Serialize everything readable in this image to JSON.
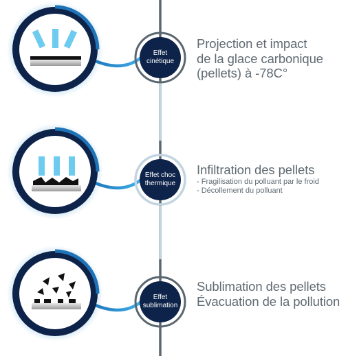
{
  "steps": [
    {
      "badge_lines": [
        "Effet",
        "cinétique"
      ],
      "title_lines": [
        "Projection et impact",
        "de la glace carbonique",
        "(pellets) à -78C°"
      ],
      "details": []
    },
    {
      "badge_lines": [
        "Effet choc",
        "thermique"
      ],
      "title_lines": [
        "Infiltration des pellets"
      ],
      "details": [
        "- Fragilisation du polluant par le froid",
        "- Décollement du polluant"
      ]
    },
    {
      "badge_lines": [
        "Effet",
        "sublimation"
      ],
      "title_lines": [
        "Sublimation des pellets",
        "Évacuation de la pollution"
      ],
      "details": []
    }
  ],
  "colors": {
    "navy": "#0e2349",
    "ring_dark": "#1a3358",
    "blue_glow": "#2e95d4",
    "pellet": "#6ecbf0",
    "line": "#5a6670",
    "line_light": "#c2d5e0",
    "text": "#5f6a72"
  }
}
